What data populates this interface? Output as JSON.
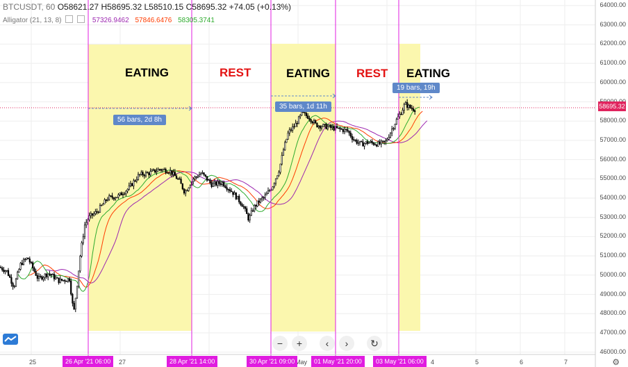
{
  "legend": {
    "symbol": "BTCUSDT, 60",
    "open": "O58621.27",
    "high": "H58695.32",
    "low": "L58510.15",
    "close": "C58695.32",
    "change": "+74.05 (+0.13%)",
    "indicator": "Alligator (21, 13, 8)",
    "jaw": "57326.9462",
    "teeth": "57846.6476",
    "lips": "58305.3741"
  },
  "colors": {
    "jaw": "#9c27b0",
    "teeth": "#ff3c00",
    "lips": "#2eab2e",
    "eating_zone": "#fbf7ae",
    "marker_line": "#e01ce0",
    "price_line": "#e0245e",
    "measure_box": "#5f88c9"
  },
  "phases": [
    {
      "id": "eat1",
      "text": "EATING"
    },
    {
      "id": "rest1",
      "text": "REST"
    },
    {
      "id": "eat2",
      "text": "EATING"
    },
    {
      "id": "rest2",
      "text": "REST"
    },
    {
      "id": "eat3",
      "text": "EATING"
    }
  ],
  "measures": [
    {
      "id": "m1",
      "text": "56 bars, 2d 8h"
    },
    {
      "id": "m2",
      "text": "35 bars, 1d 11h"
    },
    {
      "id": "m3",
      "text": "19 bars, 19h"
    }
  ],
  "price_axis": {
    "ticks": [
      "64000.00",
      "63000.00",
      "62000.00",
      "61000.00",
      "60000.00",
      "59000.00",
      "58000.00",
      "57000.00",
      "56000.00",
      "55000.00",
      "54000.00",
      "53000.00",
      "52000.00",
      "51000.00",
      "50000.00",
      "49000.00",
      "48000.00",
      "47000.00",
      "46000.00"
    ],
    "current_price": "58695.32"
  },
  "time_axis": {
    "labels": [
      "25",
      "27",
      "May",
      "4",
      "5",
      "6",
      "7"
    ],
    "markers": [
      "26 Apr '21  06:00",
      "28 Apr '21  14:00",
      "30 Apr '21  09:00",
      "01 May '21  20:00",
      "03 May '21  06:00"
    ]
  },
  "toolbar": {
    "zoom_out": "−",
    "zoom_in": "+",
    "scroll_left": "‹",
    "scroll_right": "›",
    "reset": "↻"
  },
  "icons": [
    "tradingview-logo-icon",
    "gear-icon",
    "zoom-out-icon",
    "zoom-in-icon",
    "scroll-left-icon",
    "scroll-right-icon",
    "reset-icon"
  ]
}
